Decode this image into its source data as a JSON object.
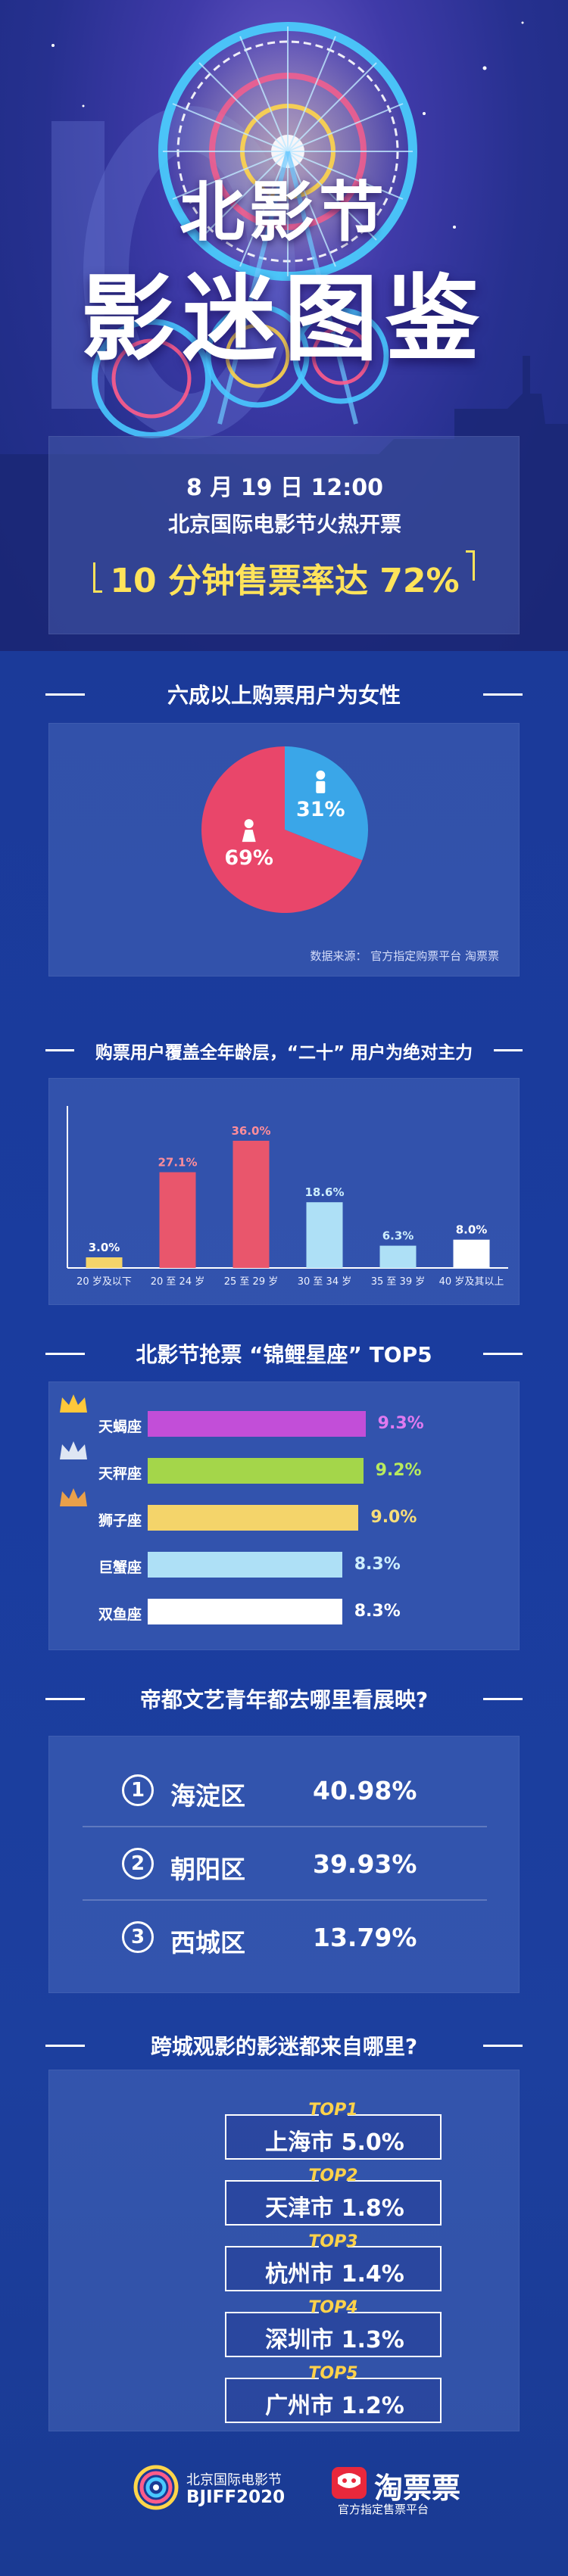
{
  "hero": {
    "title_line1": "北影节",
    "title_line2": "影迷图鉴",
    "date": "8 月 19 日 12:00",
    "subtitle": "北京国际电影节火热开票",
    "highlight": "10 分钟售票率达 72%"
  },
  "gender": {
    "heading": "六成以上购票用户为女性",
    "source": "数据来源： 官方指定购票平台 淘票票",
    "chart_data": {
      "type": "pie",
      "slices": [
        {
          "name": "女性",
          "value": 69,
          "label": "69%",
          "color": "#e9466a",
          "icon": "female-icon"
        },
        {
          "name": "男性",
          "value": 31,
          "label": "31%",
          "color": "#3aa6e8",
          "icon": "male-icon"
        }
      ]
    }
  },
  "age": {
    "heading": "购票用户覆盖全年龄层，“二十” 用户为绝对主力",
    "chart_data": {
      "type": "bar",
      "categories": [
        "20 岁及以下",
        "20 至 24 岁",
        "25 至 29 岁",
        "30 至 34 岁",
        "35 至 39 岁",
        "40 岁及其以上"
      ],
      "values": [
        3.0,
        27.1,
        36.0,
        18.6,
        6.3,
        8.0
      ],
      "labels": [
        "3.0%",
        "27.1%",
        "36.0%",
        "18.6%",
        "6.3%",
        "8.0%"
      ],
      "colors": [
        "#f4d46a",
        "#e9566c",
        "#e9566c",
        "#aee0f6",
        "#aee0f6",
        "#ffffff"
      ],
      "label_colors": [
        "#ffffff",
        "#ff8d9a",
        "#ff8d9a",
        "#cdeefc",
        "#cdeefc",
        "#ffffff"
      ],
      "ylim": [
        0,
        45
      ]
    }
  },
  "zodiac": {
    "heading": "北影节抢票 “锦鲤星座” TOP5",
    "chart_data": {
      "type": "bar",
      "orientation": "horizontal",
      "categories": [
        "天蝎座",
        "天秤座",
        "狮子座",
        "巨蟹座",
        "双鱼座"
      ],
      "values": [
        9.3,
        9.2,
        9.0,
        8.3,
        8.3
      ],
      "labels": [
        "9.3%",
        "9.2%",
        "9.0%",
        "8.3%",
        "8.3%"
      ],
      "colors": [
        "#c24ed8",
        "#a4d64a",
        "#f4d46a",
        "#aee0f6",
        "#ffffff"
      ],
      "label_colors": [
        "#e07af0",
        "#b8ea5e",
        "#f8de7a",
        "#cdeefc",
        "#ffffff"
      ],
      "crowns": [
        "gold-crown-icon",
        "silver-crown-icon",
        "bronze-crown-icon"
      ],
      "ylim": [
        0,
        12
      ]
    }
  },
  "districts": {
    "heading": "帝都文艺青年都去哪里看展映?",
    "items": [
      {
        "num": "1",
        "name": "海淀区",
        "value": "40.98%"
      },
      {
        "num": "2",
        "name": "朝阳区",
        "value": "39.93%"
      },
      {
        "num": "3",
        "name": "西城区",
        "value": "13.79%"
      }
    ]
  },
  "cities": {
    "heading": "跨城观影的影迷都来自哪里?",
    "items": [
      {
        "rank": "TOP1",
        "text": "上海市  5.0%"
      },
      {
        "rank": "TOP2",
        "text": "天津市  1.8%"
      },
      {
        "rank": "TOP3",
        "text": "杭州市  1.4%"
      },
      {
        "rank": "TOP4",
        "text": "深圳市  1.3%"
      },
      {
        "rank": "TOP5",
        "text": "广州市  1.2%"
      }
    ]
  },
  "footer": {
    "bjiff_cn": "北京国际电影节",
    "bjiff_en": "BJIFF2020",
    "taopiaopiao": "淘票票",
    "taopiaopiao_sub": "官方指定售票平台",
    "brand_colors": {
      "taopiaopiao_red": "#e8283c"
    }
  }
}
